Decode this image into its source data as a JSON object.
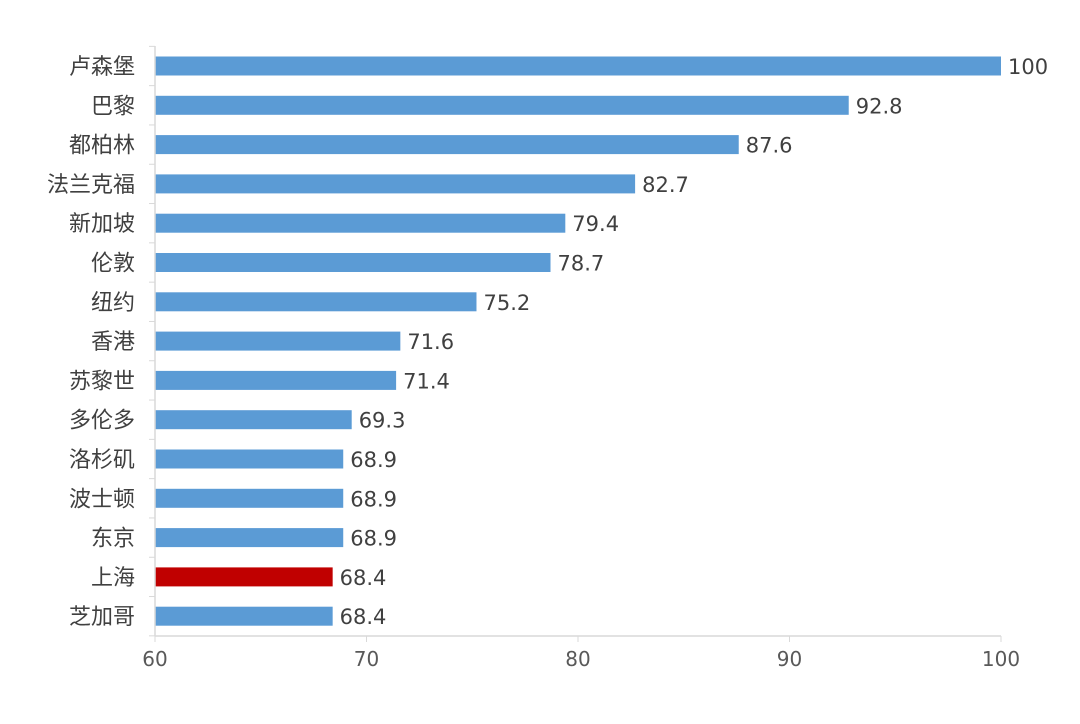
{
  "chart_data": {
    "type": "bar",
    "orientation": "horizontal",
    "title": "",
    "xlabel": "",
    "ylabel": "",
    "xlim": [
      60,
      100
    ],
    "xticks": [
      60,
      70,
      80,
      90,
      100
    ],
    "grid": false,
    "legend": "none",
    "categories": [
      "卢森堡",
      "巴黎",
      "都柏林",
      "法兰克福",
      "新加坡",
      "伦敦",
      "纽约",
      "香港",
      "苏黎世",
      "多伦多",
      "洛杉矶",
      "波士顿",
      "东京",
      "上海",
      "芝加哥"
    ],
    "values": [
      100,
      92.8,
      87.6,
      82.7,
      79.4,
      78.7,
      75.2,
      71.6,
      71.4,
      69.3,
      68.9,
      68.9,
      68.9,
      68.4,
      68.4
    ],
    "data_labels": [
      "100",
      "92.8",
      "87.6",
      "82.7",
      "79.4",
      "78.7",
      "75.2",
      "71.6",
      "71.4",
      "69.3",
      "68.9",
      "68.9",
      "68.9",
      "68.4",
      "68.4"
    ],
    "highlight_category": "上海",
    "colors": {
      "bar": "#5b9bd5",
      "highlight": "#c00000",
      "axis": "#d9d9d9",
      "text": "#404040"
    }
  }
}
